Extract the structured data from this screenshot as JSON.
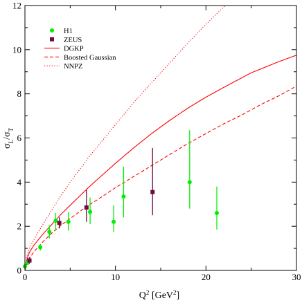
{
  "chart_data": {
    "type": "scatter",
    "xlabel": "Q",
    "xlabel_sup": "2",
    "xlabel_unit_open": " [GeV",
    "xlabel_unit_sup": "2",
    "xlabel_unit_close": "]",
    "ylabel_main": "σ",
    "ylabel_sub1": "L",
    "ylabel_slash": "/σ",
    "ylabel_sub2": "T",
    "xlim": [
      0,
      30
    ],
    "ylim": [
      0,
      12
    ],
    "xticks": [
      0,
      10,
      20,
      30
    ],
    "xtick_labels": [
      "0",
      "10",
      "20",
      "30"
    ],
    "yticks": [
      0,
      2,
      4,
      6,
      8,
      10,
      12
    ],
    "ytick_labels": [
      "0",
      "2",
      "4",
      "6",
      "8",
      "10",
      "12"
    ],
    "grid": false,
    "legend_position": "top-left",
    "legend": [
      {
        "label": "H1",
        "kind": "point",
        "color": "#00ee00"
      },
      {
        "label": "ZEUS",
        "kind": "square",
        "color": "#6b0f3d"
      },
      {
        "label": "DGKP",
        "kind": "solid",
        "color": "#ff0000"
      },
      {
        "label": "Boosted Gaussian",
        "kind": "dashed",
        "color": "#ff0000"
      },
      {
        "label": "NNPZ",
        "kind": "dotted",
        "color": "#ff0000"
      }
    ],
    "series": [
      {
        "name": "H1",
        "kind": "points",
        "color": "#00ee00",
        "points": [
          {
            "x": 0.0,
            "y": 0.18,
            "ylo": 0.08,
            "yhi": 0.3
          },
          {
            "x": 0.3,
            "y": 0.35,
            "ylo": 0.25,
            "yhi": 0.47
          },
          {
            "x": 1.7,
            "y": 1.05,
            "ylo": 0.9,
            "yhi": 1.2
          },
          {
            "x": 2.7,
            "y": 1.75,
            "ylo": 1.45,
            "yhi": 2.05
          },
          {
            "x": 3.4,
            "y": 2.25,
            "ylo": 1.85,
            "yhi": 2.6
          },
          {
            "x": 4.8,
            "y": 2.2,
            "ylo": 1.8,
            "yhi": 2.65
          },
          {
            "x": 7.2,
            "y": 2.65,
            "ylo": 2.1,
            "yhi": 3.3
          },
          {
            "x": 9.8,
            "y": 2.2,
            "ylo": 1.75,
            "yhi": 2.95
          },
          {
            "x": 10.9,
            "y": 3.35,
            "ylo": 2.4,
            "yhi": 4.7
          },
          {
            "x": 18.2,
            "y": 4.0,
            "ylo": 2.8,
            "yhi": 6.35
          },
          {
            "x": 21.2,
            "y": 2.6,
            "ylo": 1.85,
            "yhi": 3.8
          }
        ]
      },
      {
        "name": "ZEUS",
        "kind": "squares",
        "color": "#6b0f3d",
        "points": [
          {
            "x": 0.5,
            "y": 0.45,
            "ylo": 0.3,
            "yhi": 0.6
          },
          {
            "x": 3.8,
            "y": 2.15,
            "ylo": 1.9,
            "yhi": 2.4
          },
          {
            "x": 6.8,
            "y": 2.85,
            "ylo": 2.2,
            "yhi": 3.65
          },
          {
            "x": 14.1,
            "y": 3.55,
            "ylo": 2.5,
            "yhi": 5.55
          }
        ]
      },
      {
        "name": "DGKP",
        "kind": "solid",
        "color": "#ff0000",
        "points": [
          [
            0,
            0
          ],
          [
            0.25,
            0.55
          ],
          [
            0.5,
            0.82
          ],
          [
            1,
            1.15
          ],
          [
            2,
            1.65
          ],
          [
            3,
            2.1
          ],
          [
            4,
            2.55
          ],
          [
            5,
            2.95
          ],
          [
            6,
            3.35
          ],
          [
            7,
            3.75
          ],
          [
            8,
            4.12
          ],
          [
            10,
            4.85
          ],
          [
            12,
            5.55
          ],
          [
            14,
            6.2
          ],
          [
            16,
            6.8
          ],
          [
            18,
            7.35
          ],
          [
            20,
            7.85
          ],
          [
            22,
            8.3
          ],
          [
            25,
            8.95
          ],
          [
            28,
            9.45
          ],
          [
            30,
            9.75
          ]
        ]
      },
      {
        "name": "Boosted Gaussian",
        "kind": "dashed",
        "color": "#ff0000",
        "points": [
          [
            0,
            0
          ],
          [
            0.25,
            0.35
          ],
          [
            0.5,
            0.55
          ],
          [
            1,
            0.85
          ],
          [
            2,
            1.3
          ],
          [
            3,
            1.7
          ],
          [
            4,
            2.05
          ],
          [
            5,
            2.35
          ],
          [
            6,
            2.65
          ],
          [
            7,
            2.95
          ],
          [
            8,
            3.2
          ],
          [
            10,
            3.75
          ],
          [
            12,
            4.25
          ],
          [
            14,
            4.75
          ],
          [
            16,
            5.25
          ],
          [
            18,
            5.75
          ],
          [
            20,
            6.2
          ],
          [
            22,
            6.65
          ],
          [
            24,
            7.05
          ],
          [
            26,
            7.5
          ],
          [
            28,
            7.9
          ],
          [
            30,
            8.35
          ]
        ]
      },
      {
        "name": "NNPZ",
        "kind": "dotted",
        "color": "#ff0000",
        "points": [
          [
            0,
            0
          ],
          [
            0.25,
            0.7
          ],
          [
            0.5,
            1.0
          ],
          [
            1,
            1.4
          ],
          [
            2,
            2.1
          ],
          [
            3,
            2.75
          ],
          [
            4,
            3.4
          ],
          [
            5,
            4.0
          ],
          [
            6,
            4.55
          ],
          [
            7,
            5.1
          ],
          [
            8,
            5.6
          ],
          [
            10,
            6.6
          ],
          [
            12,
            7.6
          ],
          [
            14,
            8.5
          ],
          [
            16,
            9.4
          ],
          [
            18,
            10.3
          ],
          [
            20,
            11.15
          ],
          [
            22,
            11.95
          ],
          [
            22.5,
            12.15
          ]
        ]
      }
    ]
  }
}
